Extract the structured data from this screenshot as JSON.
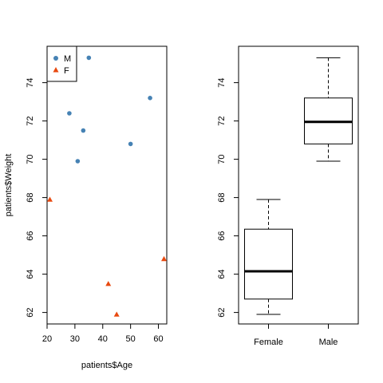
{
  "chart_data": [
    {
      "type": "scatter",
      "xlabel": "patients$Age",
      "ylabel": "patients$Weight",
      "xlim": [
        20,
        63
      ],
      "ylim": [
        61.4,
        75.9
      ],
      "x_ticks": [
        20,
        30,
        40,
        50,
        60
      ],
      "y_ticks": [
        62,
        64,
        66,
        68,
        70,
        72,
        74
      ],
      "legend_position": "top-left",
      "series": [
        {
          "name": "M",
          "color": "#4682B4",
          "marker": "circle",
          "points": [
            {
              "x": 28,
              "y": 72.4
            },
            {
              "x": 31,
              "y": 69.9
            },
            {
              "x": 33,
              "y": 71.5
            },
            {
              "x": 35,
              "y": 75.3
            },
            {
              "x": 50,
              "y": 70.8
            },
            {
              "x": 57,
              "y": 73.2
            }
          ]
        },
        {
          "name": "F",
          "color": "#E8490F",
          "marker": "triangle",
          "points": [
            {
              "x": 21,
              "y": 67.9
            },
            {
              "x": 42,
              "y": 63.5
            },
            {
              "x": 45,
              "y": 61.9
            },
            {
              "x": 62,
              "y": 64.8
            }
          ]
        }
      ]
    },
    {
      "type": "box",
      "xlabel": "",
      "ylabel": "",
      "ylim": [
        61.4,
        75.9
      ],
      "y_ticks": [
        62,
        64,
        66,
        68,
        70,
        72,
        74
      ],
      "categories": [
        "Female",
        "Male"
      ],
      "boxes": [
        {
          "category": "Female",
          "min": 61.9,
          "q1": 62.7,
          "median": 64.15,
          "q3": 66.35,
          "max": 67.9
        },
        {
          "category": "Male",
          "min": 69.9,
          "q1": 70.8,
          "median": 71.95,
          "q3": 73.2,
          "max": 75.3
        }
      ]
    }
  ]
}
